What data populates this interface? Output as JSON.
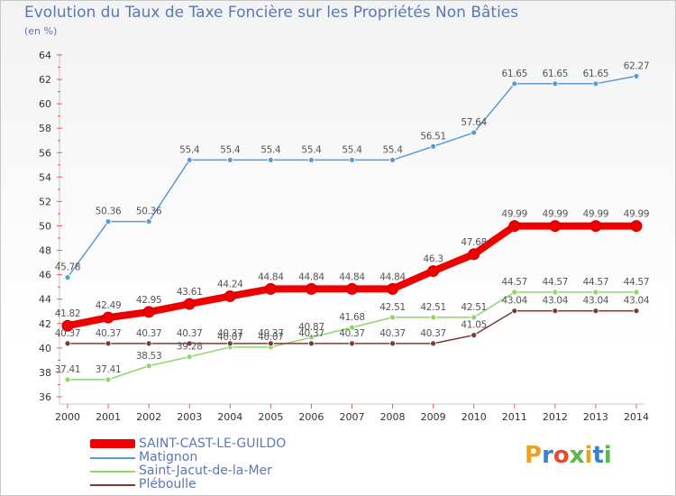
{
  "chart_data": {
    "type": "line",
    "title": "Evolution du Taux de Taxe Foncière sur les Propriétés Non Bâties",
    "unit_label": "(en %)",
    "xlabel": "",
    "ylabel": "(en %)",
    "ylim": [
      36,
      64
    ],
    "yticks": [
      36,
      38,
      40,
      42,
      44,
      46,
      48,
      50,
      52,
      54,
      56,
      58,
      60,
      62,
      64
    ],
    "categories": [
      "2000",
      "2001",
      "2002",
      "2003",
      "2004",
      "2005",
      "2006",
      "2007",
      "2008",
      "2009",
      "2010",
      "2011",
      "2012",
      "2013",
      "2014"
    ],
    "series": [
      {
        "name": "Matignon",
        "color": "#5b9ad5",
        "values": [
          45.78,
          50.36,
          50.36,
          55.4,
          55.4,
          55.4,
          55.4,
          55.4,
          55.4,
          56.51,
          57.64,
          61.65,
          61.65,
          61.65,
          62.27
        ],
        "labels": [
          "45.78",
          "50.36",
          "50.36",
          "55.4",
          "55.4",
          "55.4",
          "55.4",
          "55.4",
          "55.4",
          "56.51",
          "57.64",
          "61.65",
          "61.65",
          "61.65",
          "62.27"
        ]
      },
      {
        "name": "Saint-Jacut-de-la-Mer",
        "color": "#8fd66a",
        "values": [
          37.41,
          37.41,
          38.53,
          39.28,
          40.07,
          40.07,
          40.87,
          41.68,
          42.51,
          42.51,
          42.51,
          44.57,
          44.57,
          44.57,
          44.57
        ],
        "labels": [
          "37.41",
          "37.41",
          "38.53",
          "39.28",
          "40.07",
          "40.07",
          "40.87",
          "41.68",
          "42.51",
          "42.51",
          "42.51",
          "44.57",
          "44.57",
          "44.57",
          "44.57"
        ]
      },
      {
        "name": "Pléboulle",
        "color": "#7b3a3a",
        "values": [
          40.37,
          40.37,
          40.37,
          40.37,
          40.37,
          40.37,
          40.37,
          40.37,
          40.37,
          40.37,
          41.05,
          43.04,
          43.04,
          43.04,
          43.04
        ],
        "labels": [
          "40.37",
          "40.37",
          "40.37",
          "40.37",
          "40.37",
          "40.37",
          "40.37",
          "40.37",
          "40.37",
          "40.37",
          "41.05",
          "43.04",
          "43.04",
          "43.04",
          "43.04"
        ]
      },
      {
        "name": "SAINT-CAST-LE-GUILDO",
        "color": "#ee0000",
        "values": [
          41.82,
          42.49,
          42.95,
          43.61,
          44.24,
          44.84,
          44.84,
          44.84,
          44.84,
          46.3,
          47.68,
          49.99,
          49.99,
          49.99,
          49.99
        ],
        "labels": [
          "41.82",
          "42.49",
          "42.95",
          "43.61",
          "44.24",
          "44.84",
          "44.84",
          "44.84",
          "44.84",
          "46.3",
          "47.68",
          "49.99",
          "49.99",
          "49.99",
          "49.99"
        ]
      }
    ],
    "legend": [
      "SAINT-CAST-LE-GUILDO",
      "Matignon",
      "Saint-Jacut-de-la-Mer",
      "Pléboulle"
    ],
    "legend_placement": "bottom-left",
    "grid": false
  },
  "brand": {
    "letters": [
      "P",
      "r",
      "o",
      "x",
      "i",
      "t",
      "i"
    ],
    "colors": [
      "#f0a020",
      "#3a7fd0",
      "#e64b2a",
      "#59b84a",
      "#f0a020",
      "#3a7fd0",
      "#59b84a"
    ]
  }
}
